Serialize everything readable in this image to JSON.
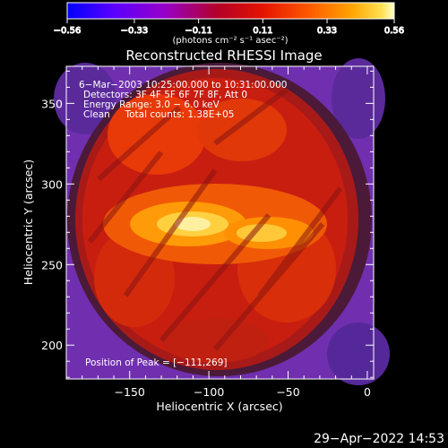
{
  "chart_data": {
    "type": "heatmap",
    "title": "Reconstructed RHESSI Image",
    "xlabel": "Heliocentric X (arcsec)",
    "ylabel": "Heliocentric Y (arcsec)",
    "xlim": [
      -190,
      4
    ],
    "ylim": [
      179,
      373
    ],
    "x_ticks": [
      -150,
      -100,
      -50,
      0
    ],
    "x_tick_labels": [
      "−150",
      "−100",
      "−50",
      "0"
    ],
    "y_ticks": [
      200,
      250,
      300,
      350
    ],
    "y_tick_labels": [
      "200",
      "250",
      "300",
      "350"
    ],
    "annotations": [
      "6−Mar−2003 10:25:00.000 to 10:31:00.000",
      "Detectors: 3F 4F 5F 6F 7F 8F, Att 0",
      "Energy Range: 3.0 − 6.0 keV",
      "Clean     Total counts: 1.38E+05"
    ],
    "peak_label": "Position of Peak = [−111,269]",
    "peak_position": [
      -111,
      269
    ],
    "colorbar": {
      "min": -0.56,
      "max": 0.56,
      "ticks": [
        -0.56,
        -0.33,
        -0.11,
        0.11,
        0.33,
        0.56
      ],
      "tick_labels": [
        "−0.56",
        "−0.33",
        "−0.11",
        "0.11",
        "0.33",
        "0.56"
      ],
      "units": "(photons cm⁻² s⁻¹ asec⁻²)",
      "colormap": [
        "#0000ff",
        "#6a00ff",
        "#a000c0",
        "#c80020",
        "#e81800",
        "#ff6000",
        "#ffa800",
        "#ffe060",
        "#ffffff"
      ]
    }
  },
  "footer": {
    "timestamp": "29−Apr−2022 14:53"
  }
}
